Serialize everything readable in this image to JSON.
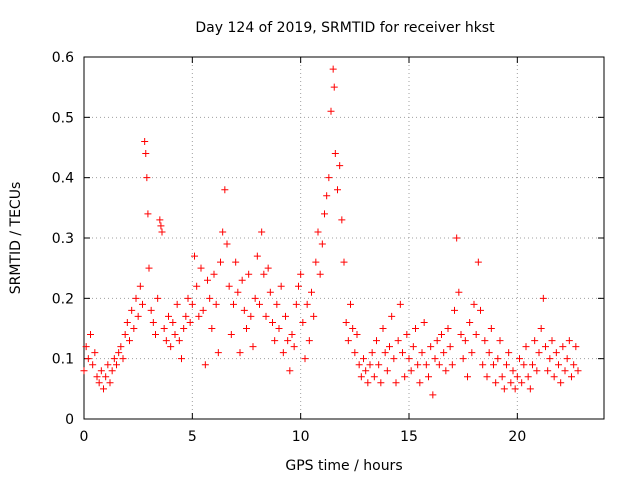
{
  "chart_data": {
    "type": "scatter",
    "title": "Day 124 of 2019, SRMTID for receiver hkst",
    "xlabel": "GPS time / hours",
    "ylabel": "SRMTID / TECUs",
    "xlim": [
      0,
      24
    ],
    "ylim": [
      0,
      0.6
    ],
    "xticks": [
      0,
      5,
      10,
      15,
      20
    ],
    "xtick_labels": [
      "0",
      "5",
      "10",
      "15",
      "20"
    ],
    "yticks": [
      0,
      0.1,
      0.2,
      0.3,
      0.4,
      0.5,
      0.6
    ],
    "ytick_labels": [
      "0",
      "0.1",
      "0.2",
      "0.3",
      "0.4",
      "0.5",
      "0.6"
    ],
    "grid": true,
    "marker": "+",
    "color": "#ff0000",
    "series": [
      {
        "name": "SRMTID",
        "points": [
          [
            0.0,
            0.08
          ],
          [
            0.1,
            0.12
          ],
          [
            0.2,
            0.1
          ],
          [
            0.3,
            0.14
          ],
          [
            0.4,
            0.09
          ],
          [
            0.5,
            0.11
          ],
          [
            0.6,
            0.07
          ],
          [
            0.7,
            0.06
          ],
          [
            0.8,
            0.08
          ],
          [
            0.9,
            0.05
          ],
          [
            1.0,
            0.07
          ],
          [
            1.1,
            0.09
          ],
          [
            1.2,
            0.06
          ],
          [
            1.3,
            0.08
          ],
          [
            1.4,
            0.1
          ],
          [
            1.5,
            0.09
          ],
          [
            1.6,
            0.11
          ],
          [
            1.7,
            0.12
          ],
          [
            1.8,
            0.1
          ],
          [
            1.9,
            0.14
          ],
          [
            2.0,
            0.16
          ],
          [
            2.1,
            0.13
          ],
          [
            2.2,
            0.18
          ],
          [
            2.3,
            0.15
          ],
          [
            2.4,
            0.2
          ],
          [
            2.5,
            0.17
          ],
          [
            2.6,
            0.22
          ],
          [
            2.7,
            0.19
          ],
          [
            2.8,
            0.46
          ],
          [
            2.85,
            0.44
          ],
          [
            2.9,
            0.4
          ],
          [
            2.95,
            0.34
          ],
          [
            3.0,
            0.25
          ],
          [
            3.1,
            0.18
          ],
          [
            3.2,
            0.16
          ],
          [
            3.3,
            0.14
          ],
          [
            3.4,
            0.2
          ],
          [
            3.5,
            0.33
          ],
          [
            3.55,
            0.32
          ],
          [
            3.6,
            0.31
          ],
          [
            3.7,
            0.15
          ],
          [
            3.8,
            0.13
          ],
          [
            3.9,
            0.17
          ],
          [
            4.0,
            0.12
          ],
          [
            4.1,
            0.16
          ],
          [
            4.2,
            0.14
          ],
          [
            4.3,
            0.19
          ],
          [
            4.4,
            0.13
          ],
          [
            4.5,
            0.1
          ],
          [
            4.6,
            0.15
          ],
          [
            4.7,
            0.17
          ],
          [
            4.8,
            0.2
          ],
          [
            4.9,
            0.16
          ],
          [
            5.0,
            0.19
          ],
          [
            5.1,
            0.27
          ],
          [
            5.2,
            0.22
          ],
          [
            5.3,
            0.17
          ],
          [
            5.4,
            0.25
          ],
          [
            5.5,
            0.18
          ],
          [
            5.6,
            0.09
          ],
          [
            5.7,
            0.23
          ],
          [
            5.8,
            0.2
          ],
          [
            5.9,
            0.15
          ],
          [
            6.0,
            0.24
          ],
          [
            6.1,
            0.19
          ],
          [
            6.2,
            0.11
          ],
          [
            6.3,
            0.26
          ],
          [
            6.4,
            0.31
          ],
          [
            6.5,
            0.38
          ],
          [
            6.6,
            0.29
          ],
          [
            6.7,
            0.22
          ],
          [
            6.8,
            0.14
          ],
          [
            6.9,
            0.19
          ],
          [
            7.0,
            0.26
          ],
          [
            7.1,
            0.21
          ],
          [
            7.2,
            0.11
          ],
          [
            7.3,
            0.23
          ],
          [
            7.4,
            0.18
          ],
          [
            7.5,
            0.15
          ],
          [
            7.6,
            0.24
          ],
          [
            7.7,
            0.17
          ],
          [
            7.8,
            0.12
          ],
          [
            7.9,
            0.2
          ],
          [
            8.0,
            0.27
          ],
          [
            8.1,
            0.19
          ],
          [
            8.2,
            0.31
          ],
          [
            8.3,
            0.24
          ],
          [
            8.4,
            0.17
          ],
          [
            8.5,
            0.25
          ],
          [
            8.6,
            0.21
          ],
          [
            8.7,
            0.16
          ],
          [
            8.8,
            0.13
          ],
          [
            8.9,
            0.19
          ],
          [
            9.0,
            0.15
          ],
          [
            9.1,
            0.22
          ],
          [
            9.2,
            0.11
          ],
          [
            9.3,
            0.17
          ],
          [
            9.4,
            0.13
          ],
          [
            9.5,
            0.08
          ],
          [
            9.6,
            0.14
          ],
          [
            9.7,
            0.12
          ],
          [
            9.8,
            0.19
          ],
          [
            9.9,
            0.22
          ],
          [
            10.0,
            0.24
          ],
          [
            10.1,
            0.16
          ],
          [
            10.2,
            0.1
          ],
          [
            10.3,
            0.19
          ],
          [
            10.4,
            0.13
          ],
          [
            10.5,
            0.21
          ],
          [
            10.6,
            0.17
          ],
          [
            10.7,
            0.26
          ],
          [
            10.8,
            0.31
          ],
          [
            10.9,
            0.24
          ],
          [
            11.0,
            0.29
          ],
          [
            11.1,
            0.34
          ],
          [
            11.2,
            0.37
          ],
          [
            11.3,
            0.4
          ],
          [
            11.4,
            0.51
          ],
          [
            11.5,
            0.58
          ],
          [
            11.55,
            0.55
          ],
          [
            11.6,
            0.44
          ],
          [
            11.7,
            0.38
          ],
          [
            11.8,
            0.42
          ],
          [
            11.9,
            0.33
          ],
          [
            12.0,
            0.26
          ],
          [
            12.1,
            0.16
          ],
          [
            12.2,
            0.13
          ],
          [
            12.3,
            0.19
          ],
          [
            12.4,
            0.15
          ],
          [
            12.5,
            0.11
          ],
          [
            12.6,
            0.14
          ],
          [
            12.7,
            0.09
          ],
          [
            12.8,
            0.07
          ],
          [
            12.9,
            0.1
          ],
          [
            13.0,
            0.08
          ],
          [
            13.1,
            0.06
          ],
          [
            13.2,
            0.09
          ],
          [
            13.3,
            0.11
          ],
          [
            13.4,
            0.07
          ],
          [
            13.5,
            0.13
          ],
          [
            13.6,
            0.09
          ],
          [
            13.7,
            0.06
          ],
          [
            13.8,
            0.15
          ],
          [
            13.9,
            0.11
          ],
          [
            14.0,
            0.08
          ],
          [
            14.1,
            0.12
          ],
          [
            14.2,
            0.17
          ],
          [
            14.3,
            0.1
          ],
          [
            14.4,
            0.06
          ],
          [
            14.5,
            0.13
          ],
          [
            14.6,
            0.19
          ],
          [
            14.7,
            0.11
          ],
          [
            14.8,
            0.07
          ],
          [
            14.9,
            0.14
          ],
          [
            15.0,
            0.1
          ],
          [
            15.1,
            0.08
          ],
          [
            15.2,
            0.12
          ],
          [
            15.3,
            0.15
          ],
          [
            15.4,
            0.09
          ],
          [
            15.5,
            0.06
          ],
          [
            15.6,
            0.11
          ],
          [
            15.7,
            0.16
          ],
          [
            15.8,
            0.09
          ],
          [
            15.9,
            0.07
          ],
          [
            16.0,
            0.12
          ],
          [
            16.1,
            0.04
          ],
          [
            16.2,
            0.1
          ],
          [
            16.3,
            0.13
          ],
          [
            16.4,
            0.09
          ],
          [
            16.5,
            0.14
          ],
          [
            16.6,
            0.11
          ],
          [
            16.7,
            0.08
          ],
          [
            16.8,
            0.15
          ],
          [
            16.9,
            0.12
          ],
          [
            17.0,
            0.09
          ],
          [
            17.1,
            0.18
          ],
          [
            17.2,
            0.3
          ],
          [
            17.3,
            0.21
          ],
          [
            17.4,
            0.14
          ],
          [
            17.5,
            0.1
          ],
          [
            17.6,
            0.13
          ],
          [
            17.7,
            0.07
          ],
          [
            17.8,
            0.16
          ],
          [
            17.9,
            0.11
          ],
          [
            18.0,
            0.19
          ],
          [
            18.1,
            0.14
          ],
          [
            18.2,
            0.26
          ],
          [
            18.3,
            0.18
          ],
          [
            18.4,
            0.09
          ],
          [
            18.5,
            0.13
          ],
          [
            18.6,
            0.07
          ],
          [
            18.7,
            0.11
          ],
          [
            18.8,
            0.15
          ],
          [
            18.9,
            0.09
          ],
          [
            19.0,
            0.06
          ],
          [
            19.1,
            0.1
          ],
          [
            19.2,
            0.13
          ],
          [
            19.3,
            0.07
          ],
          [
            19.4,
            0.05
          ],
          [
            19.5,
            0.09
          ],
          [
            19.6,
            0.11
          ],
          [
            19.7,
            0.06
          ],
          [
            19.8,
            0.08
          ],
          [
            19.9,
            0.05
          ],
          [
            20.0,
            0.07
          ],
          [
            20.1,
            0.1
          ],
          [
            20.2,
            0.06
          ],
          [
            20.3,
            0.09
          ],
          [
            20.4,
            0.12
          ],
          [
            20.5,
            0.07
          ],
          [
            20.6,
            0.05
          ],
          [
            20.7,
            0.09
          ],
          [
            20.8,
            0.13
          ],
          [
            20.9,
            0.08
          ],
          [
            21.0,
            0.11
          ],
          [
            21.1,
            0.15
          ],
          [
            21.2,
            0.2
          ],
          [
            21.3,
            0.12
          ],
          [
            21.4,
            0.08
          ],
          [
            21.5,
            0.1
          ],
          [
            21.6,
            0.13
          ],
          [
            21.7,
            0.07
          ],
          [
            21.8,
            0.11
          ],
          [
            21.9,
            0.09
          ],
          [
            22.0,
            0.06
          ],
          [
            22.1,
            0.12
          ],
          [
            22.2,
            0.08
          ],
          [
            22.3,
            0.1
          ],
          [
            22.4,
            0.13
          ],
          [
            22.5,
            0.07
          ],
          [
            22.6,
            0.09
          ],
          [
            22.7,
            0.12
          ],
          [
            22.8,
            0.08
          ]
        ]
      }
    ]
  }
}
